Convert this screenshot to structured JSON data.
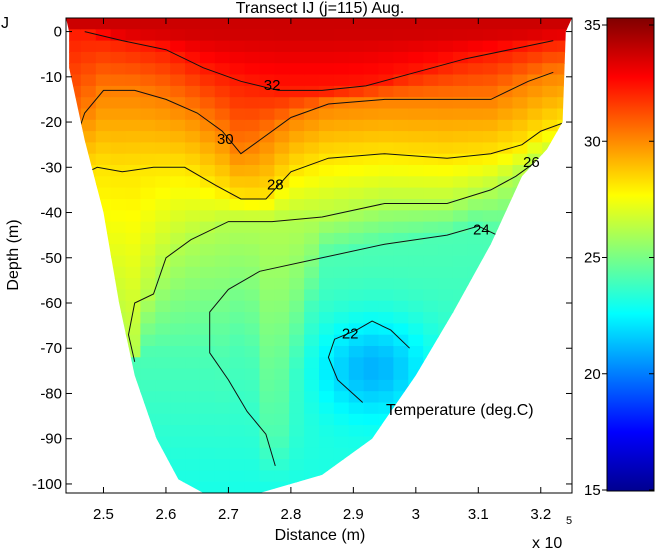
{
  "chart_data": {
    "type": "heatmap",
    "title": "Transect  IJ   (j=115)  Aug.",
    "xlabel": "Distance (m)",
    "ylabel": "Depth (m)",
    "x_exponent_label": "x 10",
    "x_exponent_power": "5",
    "annotation": "Temperature (deg.C)",
    "left_edge_mark": "J",
    "xlim": [
      2.44,
      3.25
    ],
    "ylim": [
      -102,
      3
    ],
    "x_ticks": [
      2.5,
      2.6,
      2.7,
      2.8,
      2.9,
      3.0,
      3.1,
      3.2
    ],
    "x_tick_labels": [
      "2.5",
      "2.6",
      "2.7",
      "2.8",
      "2.9",
      "3",
      "3.1",
      "3.2"
    ],
    "y_ticks": [
      0,
      -10,
      -20,
      -30,
      -40,
      -50,
      -60,
      -70,
      -80,
      -90,
      -100
    ],
    "y_tick_labels": [
      "0",
      "-10",
      "-20",
      "-30",
      "-40",
      "-50",
      "-60",
      "-70",
      "-80",
      "-90",
      "-100"
    ],
    "colorbar": {
      "colormap": "jet",
      "range": [
        15,
        35
      ],
      "ticks": [
        15,
        20,
        25,
        30,
        35
      ],
      "tick_labels": [
        "15",
        "20",
        "25",
        "30",
        "35"
      ]
    },
    "bottom_profile": [
      {
        "x": 2.445,
        "depth": -8
      },
      {
        "x": 2.47,
        "depth": -24
      },
      {
        "x": 2.5,
        "depth": -40
      },
      {
        "x": 2.525,
        "depth": -60
      },
      {
        "x": 2.55,
        "depth": -76
      },
      {
        "x": 2.585,
        "depth": -90
      },
      {
        "x": 2.62,
        "depth": -99
      },
      {
        "x": 2.66,
        "depth": -102
      },
      {
        "x": 2.75,
        "depth": -102
      },
      {
        "x": 2.85,
        "depth": -98
      },
      {
        "x": 2.93,
        "depth": -90
      },
      {
        "x": 3.0,
        "depth": -76
      },
      {
        "x": 3.06,
        "depth": -62
      },
      {
        "x": 3.12,
        "depth": -47
      },
      {
        "x": 3.17,
        "depth": -32
      },
      {
        "x": 3.21,
        "depth": -26
      },
      {
        "x": 3.235,
        "depth": -20
      },
      {
        "x": 3.24,
        "depth": 0
      }
    ],
    "contours": [
      {
        "level": 32,
        "label": "32",
        "label_at": {
          "x": 2.77,
          "depth": -12
        },
        "points": [
          [
            2.47,
            0
          ],
          [
            2.53,
            -2
          ],
          [
            2.6,
            -4
          ],
          [
            2.66,
            -8
          ],
          [
            2.72,
            -11
          ],
          [
            2.78,
            -13
          ],
          [
            2.85,
            -13
          ],
          [
            2.92,
            -12
          ],
          [
            3.0,
            -9
          ],
          [
            3.08,
            -6
          ],
          [
            3.15,
            -4
          ],
          [
            3.22,
            -2
          ]
        ]
      },
      {
        "level": 30,
        "label": "30",
        "label_at": {
          "x": 2.695,
          "depth": -24
        },
        "points": [
          [
            2.46,
            -22
          ],
          [
            2.47,
            -18
          ],
          [
            2.5,
            -13
          ],
          [
            2.55,
            -13
          ],
          [
            2.6,
            -15
          ],
          [
            2.65,
            -18
          ],
          [
            2.69,
            -22
          ],
          [
            2.72,
            -27
          ],
          [
            2.75,
            -24
          ],
          [
            2.8,
            -19
          ],
          [
            2.86,
            -16
          ],
          [
            2.95,
            -15
          ],
          [
            3.05,
            -15
          ],
          [
            3.12,
            -15
          ],
          [
            3.18,
            -11
          ],
          [
            3.22,
            -9
          ]
        ]
      },
      {
        "level": 28,
        "label": "28",
        "label_at": {
          "x": 2.775,
          "depth": -34
        },
        "points": [
          [
            2.475,
            -31
          ],
          [
            2.49,
            -30
          ],
          [
            2.53,
            -31
          ],
          [
            2.58,
            -30
          ],
          [
            2.63,
            -30
          ],
          [
            2.68,
            -34
          ],
          [
            2.72,
            -37
          ],
          [
            2.76,
            -37
          ],
          [
            2.8,
            -31
          ],
          [
            2.86,
            -28
          ],
          [
            2.95,
            -27
          ],
          [
            3.05,
            -28
          ],
          [
            3.12,
            -27
          ],
          [
            3.17,
            -25
          ],
          [
            3.2,
            -22
          ],
          [
            3.24,
            -20
          ]
        ]
      },
      {
        "level": 26,
        "label": "26",
        "label_at": {
          "x": 3.185,
          "depth": -29
        },
        "points": [
          [
            2.55,
            -73
          ],
          [
            2.54,
            -67
          ],
          [
            2.55,
            -60
          ],
          [
            2.58,
            -58
          ],
          [
            2.6,
            -50
          ],
          [
            2.64,
            -46
          ],
          [
            2.7,
            -42
          ],
          [
            2.77,
            -42
          ],
          [
            2.85,
            -41
          ],
          [
            2.95,
            -38
          ],
          [
            3.05,
            -38
          ],
          [
            3.12,
            -35
          ],
          [
            3.16,
            -32
          ],
          [
            3.2,
            -28
          ]
        ]
      },
      {
        "level": 24,
        "label": "24",
        "label_at": {
          "x": 3.105,
          "depth": -44
        },
        "points": [
          [
            2.775,
            -96
          ],
          [
            2.76,
            -89
          ],
          [
            2.73,
            -84
          ],
          [
            2.7,
            -77
          ],
          [
            2.67,
            -71
          ],
          [
            2.67,
            -62
          ],
          [
            2.7,
            -57
          ],
          [
            2.75,
            -53
          ],
          [
            2.85,
            -50
          ],
          [
            2.95,
            -47
          ],
          [
            3.05,
            -45
          ],
          [
            3.1,
            -43
          ],
          [
            3.13,
            -45
          ]
        ]
      },
      {
        "level": 22,
        "label": "22",
        "label_at": {
          "x": 2.895,
          "depth": -67
        },
        "points": [
          [
            2.915,
            -82
          ],
          [
            2.875,
            -77
          ],
          [
            2.86,
            -72
          ],
          [
            2.87,
            -68
          ],
          [
            2.905,
            -66
          ],
          [
            2.93,
            -64
          ],
          [
            2.96,
            -66
          ],
          [
            2.99,
            -70
          ]
        ]
      }
    ]
  }
}
